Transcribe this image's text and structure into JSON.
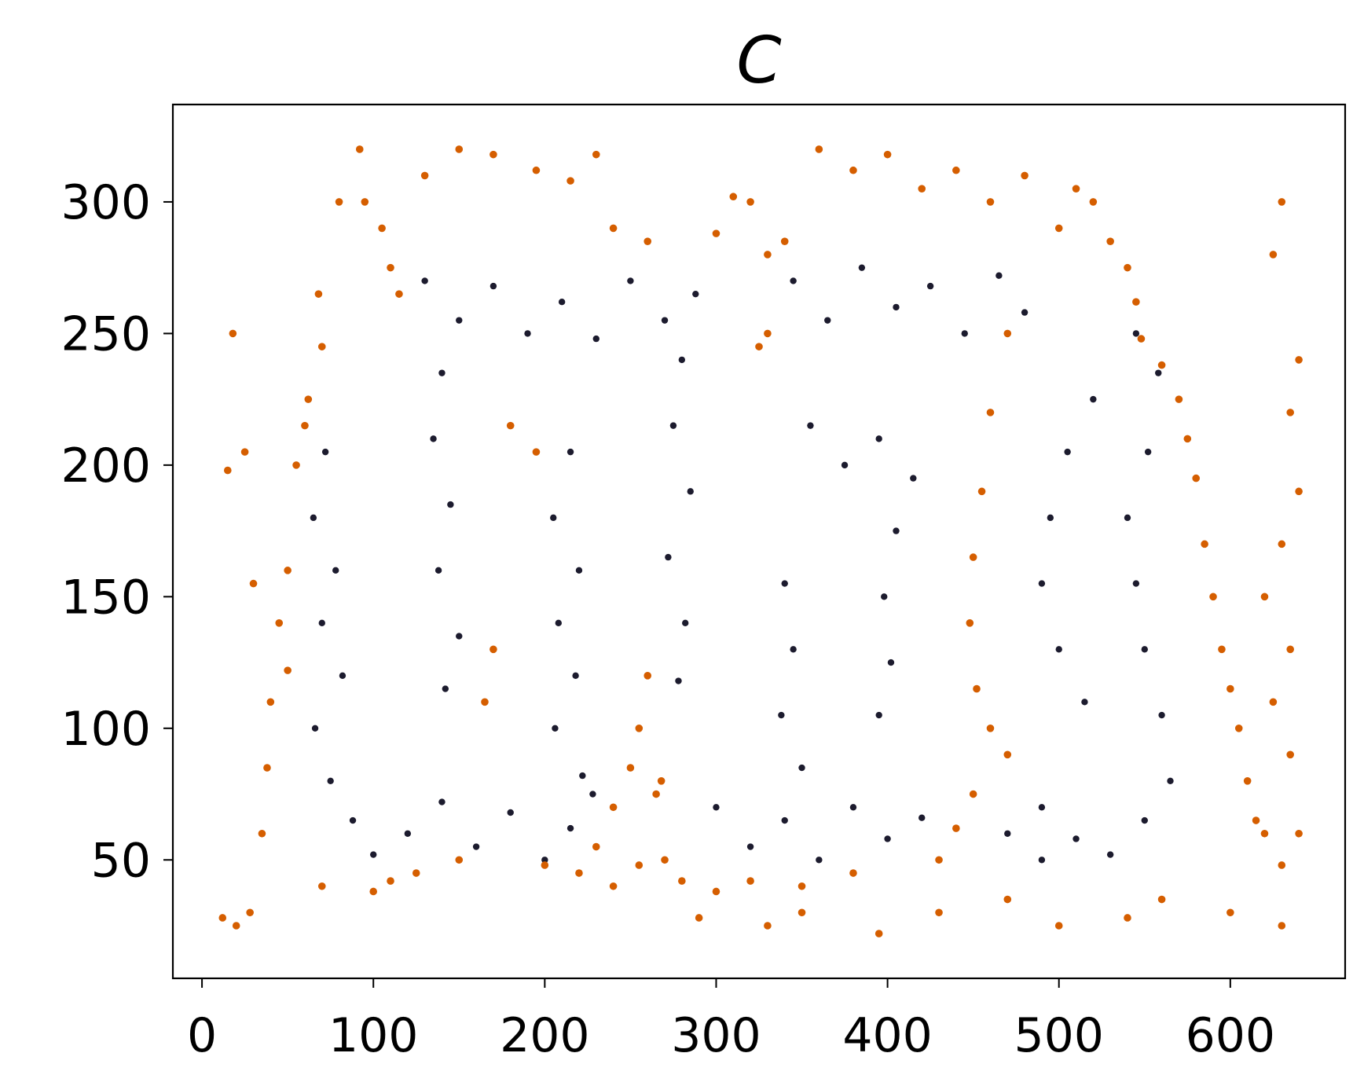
{
  "chart_data": {
    "type": "scatter",
    "title": "C",
    "xlabel": "",
    "ylabel": "",
    "xlim": [
      -17,
      667
    ],
    "ylim": [
      5,
      337
    ],
    "x_ticks": [
      "0",
      "100",
      "200",
      "300",
      "400",
      "500",
      "600"
    ],
    "y_ticks": [
      "50",
      "100",
      "150",
      "200",
      "250",
      "300"
    ],
    "x_tick_values": [
      0,
      100,
      200,
      300,
      400,
      500,
      600
    ],
    "y_tick_values": [
      50,
      100,
      150,
      200,
      250,
      300
    ],
    "grid": false,
    "series": [
      {
        "role": "clustered points",
        "color": "#1c1b2e",
        "points": [
          [
            72,
            205
          ],
          [
            65,
            180
          ],
          [
            78,
            160
          ],
          [
            70,
            140
          ],
          [
            82,
            120
          ],
          [
            66,
            100
          ],
          [
            75,
            80
          ],
          [
            88,
            65
          ],
          [
            100,
            52
          ],
          [
            120,
            60
          ],
          [
            140,
            72
          ],
          [
            160,
            55
          ],
          [
            180,
            68
          ],
          [
            200,
            50
          ],
          [
            215,
            62
          ],
          [
            228,
            75
          ],
          [
            215,
            205
          ],
          [
            205,
            180
          ],
          [
            220,
            160
          ],
          [
            208,
            140
          ],
          [
            218,
            120
          ],
          [
            206,
            100
          ],
          [
            222,
            82
          ],
          [
            130,
            270
          ],
          [
            150,
            255
          ],
          [
            170,
            268
          ],
          [
            190,
            250
          ],
          [
            210,
            262
          ],
          [
            230,
            248
          ],
          [
            250,
            270
          ],
          [
            270,
            255
          ],
          [
            288,
            265
          ],
          [
            140,
            235
          ],
          [
            135,
            210
          ],
          [
            145,
            185
          ],
          [
            138,
            160
          ],
          [
            150,
            135
          ],
          [
            142,
            115
          ],
          [
            280,
            240
          ],
          [
            275,
            215
          ],
          [
            285,
            190
          ],
          [
            272,
            165
          ],
          [
            282,
            140
          ],
          [
            278,
            118
          ],
          [
            345,
            270
          ],
          [
            365,
            255
          ],
          [
            385,
            275
          ],
          [
            405,
            260
          ],
          [
            425,
            268
          ],
          [
            445,
            250
          ],
          [
            465,
            272
          ],
          [
            480,
            258
          ],
          [
            355,
            215
          ],
          [
            375,
            200
          ],
          [
            395,
            210
          ],
          [
            415,
            195
          ],
          [
            405,
            175
          ],
          [
            398,
            150
          ],
          [
            402,
            125
          ],
          [
            395,
            105
          ],
          [
            340,
            155
          ],
          [
            345,
            130
          ],
          [
            338,
            105
          ],
          [
            350,
            85
          ],
          [
            300,
            70
          ],
          [
            320,
            55
          ],
          [
            340,
            65
          ],
          [
            360,
            50
          ],
          [
            380,
            70
          ],
          [
            400,
            58
          ],
          [
            420,
            66
          ],
          [
            470,
            60
          ],
          [
            490,
            50
          ],
          [
            510,
            58
          ],
          [
            530,
            52
          ],
          [
            550,
            65
          ],
          [
            565,
            80
          ],
          [
            560,
            105
          ],
          [
            550,
            130
          ],
          [
            545,
            155
          ],
          [
            540,
            180
          ],
          [
            552,
            205
          ],
          [
            558,
            235
          ],
          [
            545,
            250
          ],
          [
            520,
            225
          ],
          [
            505,
            205
          ],
          [
            495,
            180
          ],
          [
            490,
            155
          ],
          [
            500,
            130
          ],
          [
            515,
            110
          ],
          [
            490,
            70
          ]
        ]
      },
      {
        "role": "scattered points",
        "color": "#d55e00",
        "points": [
          [
            18,
            250
          ],
          [
            25,
            205
          ],
          [
            15,
            198
          ],
          [
            30,
            155
          ],
          [
            40,
            110
          ],
          [
            38,
            85
          ],
          [
            35,
            60
          ],
          [
            28,
            30
          ],
          [
            20,
            25
          ],
          [
            12,
            28
          ],
          [
            80,
            300
          ],
          [
            95,
            300
          ],
          [
            105,
            290
          ],
          [
            110,
            275
          ],
          [
            115,
            265
          ],
          [
            68,
            265
          ],
          [
            70,
            245
          ],
          [
            62,
            225
          ],
          [
            55,
            200
          ],
          [
            60,
            215
          ],
          [
            50,
            160
          ],
          [
            45,
            140
          ],
          [
            50,
            122
          ],
          [
            92,
            320
          ],
          [
            130,
            310
          ],
          [
            150,
            320
          ],
          [
            170,
            318
          ],
          [
            195,
            312
          ],
          [
            215,
            308
          ],
          [
            230,
            318
          ],
          [
            240,
            290
          ],
          [
            260,
            285
          ],
          [
            300,
            288
          ],
          [
            320,
            300
          ],
          [
            310,
            302
          ],
          [
            330,
            280
          ],
          [
            340,
            285
          ],
          [
            330,
            250
          ],
          [
            325,
            245
          ],
          [
            360,
            320
          ],
          [
            380,
            312
          ],
          [
            400,
            318
          ],
          [
            420,
            305
          ],
          [
            440,
            312
          ],
          [
            460,
            300
          ],
          [
            480,
            310
          ],
          [
            500,
            290
          ],
          [
            510,
            305
          ],
          [
            520,
            300
          ],
          [
            530,
            285
          ],
          [
            540,
            275
          ],
          [
            545,
            262
          ],
          [
            548,
            248
          ],
          [
            560,
            238
          ],
          [
            570,
            225
          ],
          [
            575,
            210
          ],
          [
            580,
            195
          ],
          [
            585,
            170
          ],
          [
            590,
            150
          ],
          [
            595,
            130
          ],
          [
            600,
            115
          ],
          [
            605,
            100
          ],
          [
            610,
            80
          ],
          [
            615,
            65
          ],
          [
            620,
            60
          ],
          [
            470,
            250
          ],
          [
            460,
            220
          ],
          [
            455,
            190
          ],
          [
            450,
            165
          ],
          [
            448,
            140
          ],
          [
            452,
            115
          ],
          [
            460,
            100
          ],
          [
            470,
            90
          ],
          [
            450,
            75
          ],
          [
            440,
            62
          ],
          [
            430,
            50
          ],
          [
            260,
            120
          ],
          [
            255,
            100
          ],
          [
            250,
            85
          ],
          [
            240,
            70
          ],
          [
            230,
            55
          ],
          [
            170,
            130
          ],
          [
            165,
            110
          ],
          [
            180,
            215
          ],
          [
            195,
            205
          ],
          [
            240,
            40
          ],
          [
            290,
            28
          ],
          [
            330,
            25
          ],
          [
            350,
            30
          ],
          [
            395,
            22
          ],
          [
            430,
            30
          ],
          [
            470,
            35
          ],
          [
            500,
            25
          ],
          [
            540,
            28
          ],
          [
            560,
            35
          ],
          [
            600,
            30
          ],
          [
            630,
            25
          ],
          [
            630,
            300
          ],
          [
            625,
            280
          ],
          [
            640,
            240
          ],
          [
            635,
            220
          ],
          [
            640,
            190
          ],
          [
            630,
            170
          ],
          [
            620,
            150
          ],
          [
            635,
            130
          ],
          [
            625,
            110
          ],
          [
            635,
            90
          ],
          [
            640,
            60
          ],
          [
            630,
            48
          ],
          [
            380,
            45
          ],
          [
            350,
            40
          ],
          [
            320,
            42
          ],
          [
            300,
            38
          ],
          [
            280,
            42
          ],
          [
            270,
            50
          ],
          [
            265,
            75
          ],
          [
            268,
            80
          ],
          [
            255,
            48
          ],
          [
            220,
            45
          ],
          [
            200,
            48
          ],
          [
            150,
            50
          ],
          [
            125,
            45
          ],
          [
            110,
            42
          ],
          [
            100,
            38
          ],
          [
            70,
            40
          ]
        ]
      }
    ]
  }
}
